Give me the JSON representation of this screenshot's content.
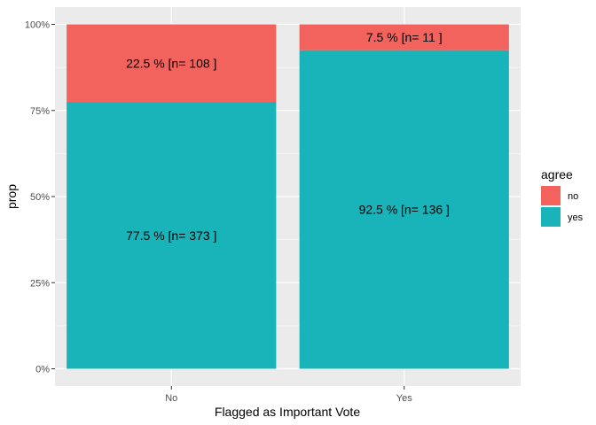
{
  "chart_data": {
    "type": "bar",
    "stacked": true,
    "categories": [
      "No",
      "Yes"
    ],
    "series": [
      {
        "name": "yes",
        "values": [
          77.5,
          92.5
        ],
        "labels": [
          "77.5 % [n= 373 ]",
          "92.5 % [n= 136 ]"
        ],
        "color": "#19B4BA"
      },
      {
        "name": "no",
        "values": [
          22.5,
          7.5
        ],
        "labels": [
          "22.5 % [n= 108 ]",
          "7.5 % [n= 11 ]"
        ],
        "color": "#F3635E"
      }
    ],
    "xlabel": "Flagged as Important Vote",
    "ylabel": "prop",
    "ylim": [
      0,
      100
    ],
    "yticks": [
      0,
      25,
      50,
      75,
      100
    ],
    "ytick_labels": [
      "0%",
      "25%",
      "50%",
      "75%",
      "100%"
    ],
    "legend": {
      "title": "agree",
      "position": "right",
      "entries": [
        {
          "label": "no",
          "color": "#F3635E"
        },
        {
          "label": "yes",
          "color": "#19B4BA"
        }
      ]
    },
    "grid": true,
    "panel_background": "#EBEBEB",
    "grid_color": "#FFFFFF"
  }
}
